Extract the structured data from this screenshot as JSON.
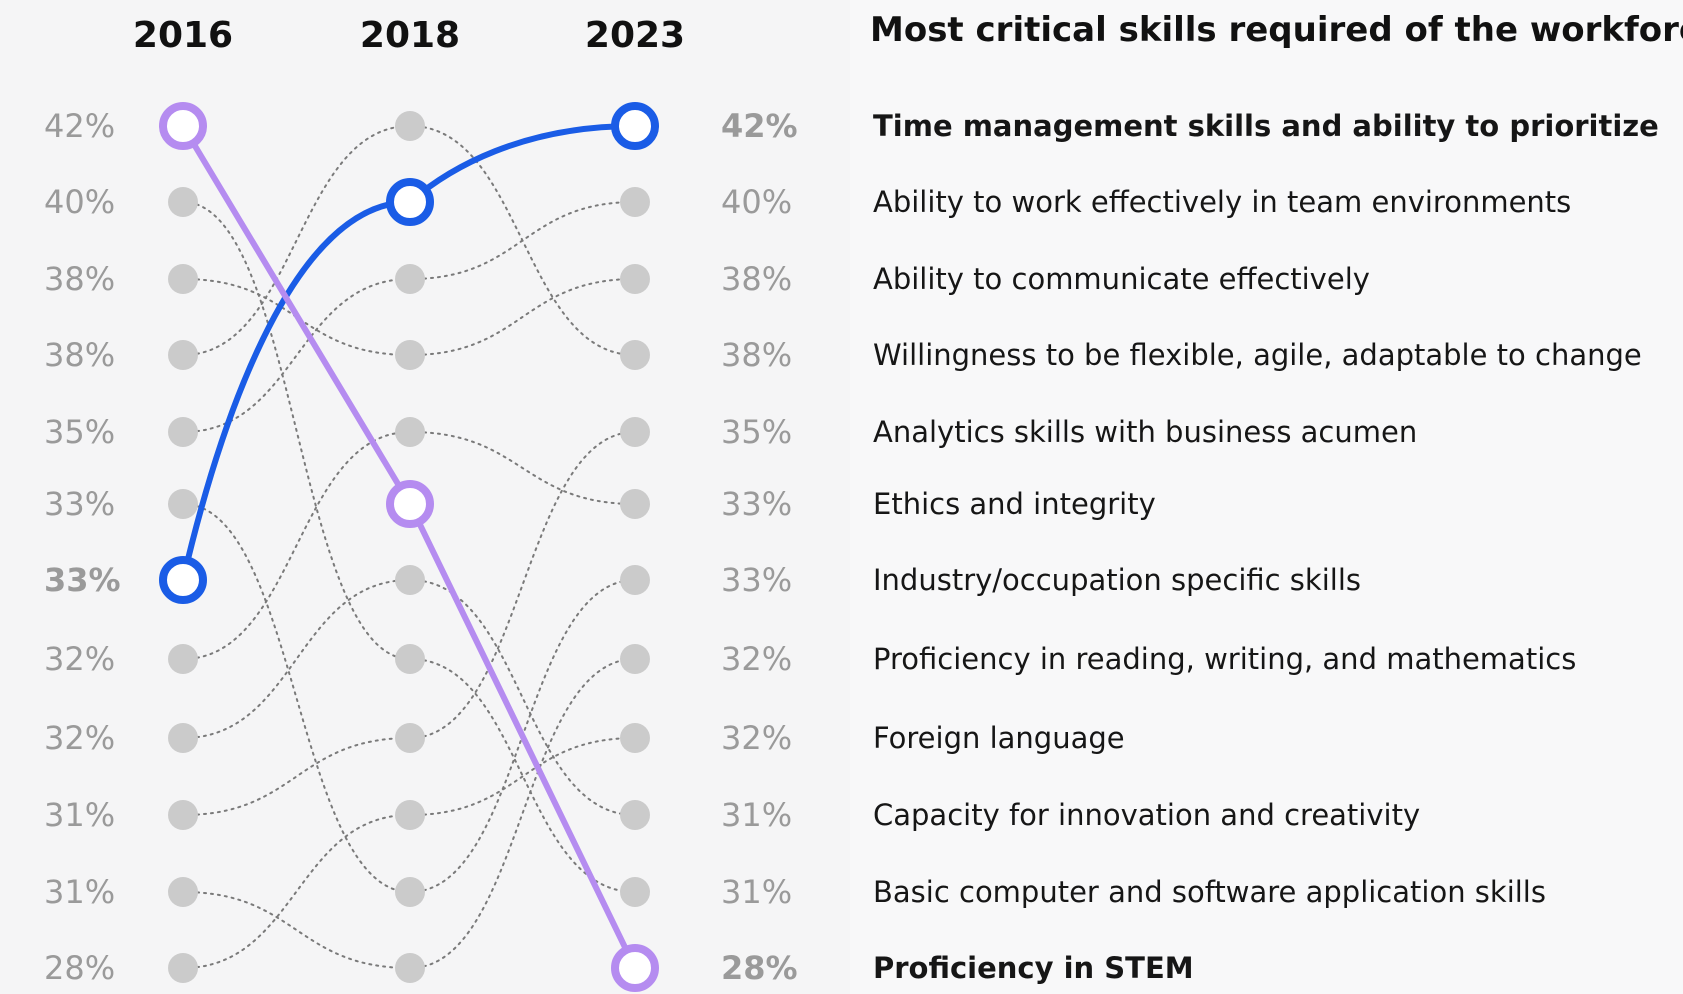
{
  "chart_data": {
    "type": "bump",
    "title": "Most critical skills required of the workforce",
    "years": [
      "2016",
      "2018",
      "2023"
    ],
    "left_percentages_2016": [
      "42%",
      "40%",
      "38%",
      "38%",
      "35%",
      "33%",
      "33%",
      "32%",
      "32%",
      "31%",
      "31%",
      "28%"
    ],
    "right_percentages_2023": [
      "42%",
      "40%",
      "38%",
      "38%",
      "35%",
      "33%",
      "33%",
      "32%",
      "32%",
      "31%",
      "31%",
      "28%"
    ],
    "skills": [
      "Time management skills and ability to prioritize",
      "Ability to work effectively in team environments",
      "Ability to communicate effectively",
      "Willingness to be flexible, agile, adaptable to change",
      "Analytics skills with business acumen",
      "Ethics and integrity",
      "Industry/occupation specific skills",
      "Proficiency in reading, writing, and mathematics",
      "Foreign language",
      "Capacity for innovation and creativity",
      "Basic computer and software application skills",
      "Proficiency in STEM"
    ],
    "highlighted_series": [
      {
        "name": "Time management skills and ability to prioritize",
        "ranks": [
          7,
          2,
          1
        ],
        "color": "#1a5ce6"
      },
      {
        "name": "Proficiency in STEM",
        "ranks": [
          1,
          6,
          12
        ],
        "color": "#b58cf0"
      }
    ],
    "background_links": [
      {
        "from_year": 0,
        "from_rank": 2,
        "to_year": 1,
        "to_rank": 8
      },
      {
        "from_year": 0,
        "from_rank": 3,
        "to_year": 1,
        "to_rank": 4
      },
      {
        "from_year": 0,
        "from_rank": 4,
        "to_year": 1,
        "to_rank": 1
      },
      {
        "from_year": 0,
        "from_rank": 5,
        "to_year": 1,
        "to_rank": 3
      },
      {
        "from_year": 0,
        "from_rank": 6,
        "to_year": 1,
        "to_rank": 11
      },
      {
        "from_year": 0,
        "from_rank": 8,
        "to_year": 1,
        "to_rank": 5
      },
      {
        "from_year": 0,
        "from_rank": 9,
        "to_year": 1,
        "to_rank": 7
      },
      {
        "from_year": 0,
        "from_rank": 10,
        "to_year": 1,
        "to_rank": 9
      },
      {
        "from_year": 0,
        "from_rank": 11,
        "to_year": 1,
        "to_rank": 12
      },
      {
        "from_year": 0,
        "from_rank": 12,
        "to_year": 1,
        "to_rank": 10
      },
      {
        "from_year": 1,
        "from_rank": 1,
        "to_year": 2,
        "to_rank": 4
      },
      {
        "from_year": 1,
        "from_rank": 3,
        "to_year": 2,
        "to_rank": 2
      },
      {
        "from_year": 1,
        "from_rank": 4,
        "to_year": 2,
        "to_rank": 3
      },
      {
        "from_year": 1,
        "from_rank": 5,
        "to_year": 2,
        "to_rank": 6
      },
      {
        "from_year": 1,
        "from_rank": 7,
        "to_year": 2,
        "to_rank": 10
      },
      {
        "from_year": 1,
        "from_rank": 8,
        "to_year": 2,
        "to_rank": 11
      },
      {
        "from_year": 1,
        "from_rank": 9,
        "to_year": 2,
        "to_rank": 5
      },
      {
        "from_year": 1,
        "from_rank": 10,
        "to_year": 2,
        "to_rank": 9
      },
      {
        "from_year": 1,
        "from_rank": 11,
        "to_year": 2,
        "to_rank": 7
      },
      {
        "from_year": 1,
        "from_rank": 12,
        "to_year": 2,
        "to_rank": 8
      }
    ],
    "colors": {
      "left_highlight": "#b58cf0",
      "left_highlight_rank": 1,
      "left_highlight_blue_rank": 7,
      "left_blue": "#1a5ce6",
      "right_blue_rank": 1,
      "right_purple_rank": 12,
      "dot": "#cbcbcb",
      "muted_text": "#9a9a9a"
    }
  }
}
